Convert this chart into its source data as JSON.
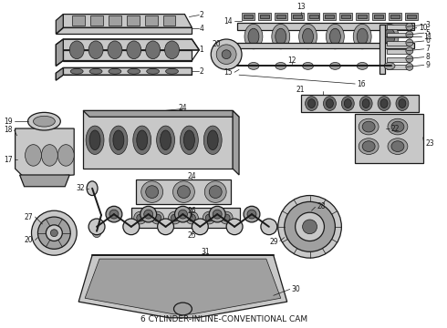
{
  "caption": "6 CYLINDER-INLINE-CONVENTIONAL CAM",
  "bg": "#ffffff",
  "fg": "#1a1a1a",
  "gray1": "#c8c8c8",
  "gray2": "#a0a0a0",
  "gray3": "#707070",
  "gray4": "#404040",
  "caption_fontsize": 6.5,
  "fig_width": 4.9,
  "fig_height": 3.6,
  "dpi": 100,
  "lw_main": 0.9,
  "lw_thin": 0.5,
  "lw_thick": 1.4,
  "label_fs": 5.5
}
